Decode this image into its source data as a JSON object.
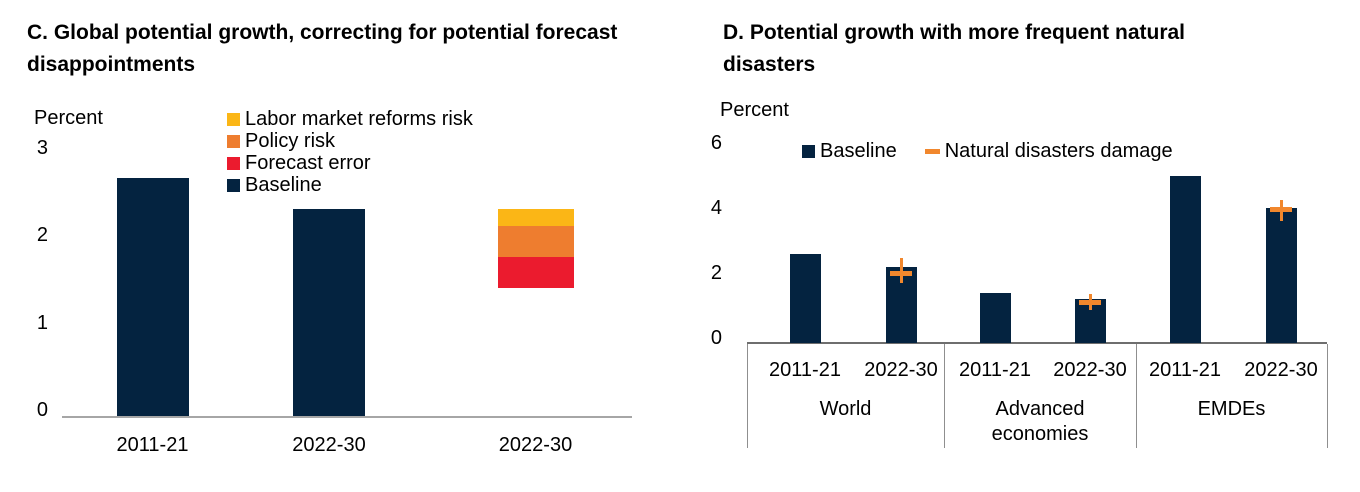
{
  "colors": {
    "navy": "#042340",
    "yellow": "#FBB616",
    "orange": "#EE7D2F",
    "red": "#EB1B2E",
    "marker_orange": "#F1872D",
    "axis_gray": "#A6A6A6",
    "table_top_border": "#6E6E6E",
    "table_border": "#8F8F8F",
    "text": "#000000"
  },
  "panel_c": {
    "title": "C. Global potential growth, correcting for potential forecast disappointments",
    "unit_label": "Percent",
    "chart_data": {
      "type": "bar",
      "stacked": true,
      "ylabel": "Percent",
      "ylim": [
        0,
        3
      ],
      "yticks": [
        0,
        1,
        2,
        3
      ],
      "grid": false,
      "legend_position": "top-center-vertical",
      "categories": [
        "2011-21",
        "2022-30",
        "2022-30"
      ],
      "legend": [
        {
          "label": "Labor market reforms risk",
          "color_key": "yellow"
        },
        {
          "label": "Policy risk",
          "color_key": "orange"
        },
        {
          "label": "Forecast error",
          "color_key": "red"
        },
        {
          "label": "Baseline",
          "color_key": "navy"
        }
      ],
      "bars": [
        {
          "category": "2011-21",
          "segments": [
            {
              "series": "Baseline",
              "from": 0,
              "to": 2.65,
              "color_key": "navy"
            }
          ]
        },
        {
          "category": "2022-30",
          "segments": [
            {
              "series": "Baseline",
              "from": 0,
              "to": 2.3,
              "color_key": "navy"
            }
          ]
        },
        {
          "category": "2022-30",
          "segments": [
            {
              "series": "Forecast error",
              "from": 1.4,
              "to": 1.75,
              "color_key": "red"
            },
            {
              "series": "Policy risk",
              "from": 1.75,
              "to": 2.1,
              "color_key": "orange"
            },
            {
              "series": "Labor market reforms risk",
              "from": 2.1,
              "to": 2.3,
              "color_key": "yellow"
            }
          ]
        }
      ]
    }
  },
  "panel_d": {
    "title": "D. Potential growth with more frequent natural disasters",
    "unit_label": "Percent",
    "chart_data": {
      "type": "bar",
      "ylabel": "Percent",
      "ylim": [
        0,
        6
      ],
      "yticks": [
        0,
        2,
        4,
        6
      ],
      "grid": false,
      "legend_position": "top-center-horizontal",
      "legend": [
        {
          "label": "Baseline",
          "marker": "square",
          "color_key": "navy"
        },
        {
          "label": "Natural disasters damage",
          "marker": "dash",
          "color_key": "marker_orange"
        }
      ],
      "groups": [
        {
          "label": "World",
          "bars": [
            {
              "category": "2011-21",
              "baseline": 2.6
            },
            {
              "category": "2022-30",
              "baseline": 2.2,
              "natural_disasters_damage": {
                "value": 2.0,
                "whisker_low": 1.7,
                "whisker_high": 2.45
              }
            }
          ]
        },
        {
          "label": "Advanced economies",
          "bars": [
            {
              "category": "2011-21",
              "baseline": 1.4
            },
            {
              "category": "2022-30",
              "baseline": 1.2,
              "natural_disasters_damage": {
                "value": 1.1,
                "whisker_low": 0.85,
                "whisker_high": 1.35
              }
            }
          ]
        },
        {
          "label": "EMDEs",
          "bars": [
            {
              "category": "2011-21",
              "baseline": 5.0
            },
            {
              "category": "2022-30",
              "baseline": 4.0,
              "natural_disasters_damage": {
                "value": 3.95,
                "whisker_low": 3.6,
                "whisker_high": 4.25
              }
            }
          ]
        }
      ]
    }
  }
}
